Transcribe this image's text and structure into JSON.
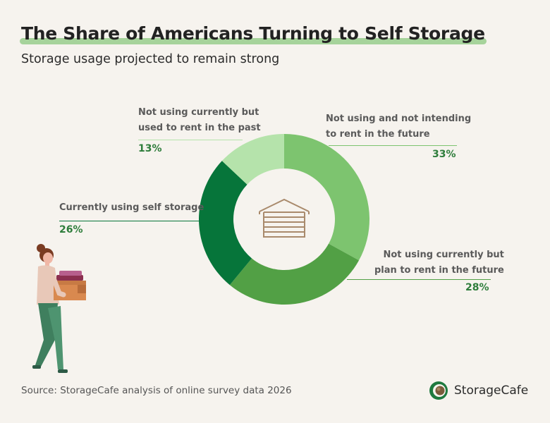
{
  "header": {
    "title": "The Share of Americans Turning to Self Storage",
    "subtitle": "Storage usage projected to remain strong"
  },
  "chart_data": {
    "type": "pie",
    "donut": true,
    "title": "The Share of Americans Turning to Self Storage",
    "subtitle": "Storage usage projected to remain strong",
    "slices": [
      {
        "label": "Not using and not intending to rent in the future",
        "line1": "Not using and not intending",
        "line2": "to rent in the future",
        "value": 33,
        "display": "33%",
        "color": "#7dc46f"
      },
      {
        "label": "Not using currently but plan to rent in the future",
        "line1": "Not using currently but",
        "line2": "plan to rent in the future",
        "value": 28,
        "display": "28%",
        "color": "#52a045"
      },
      {
        "label": "Currently using self storage",
        "line1": "Currently using self storage",
        "line2": "",
        "value": 26,
        "display": "26%",
        "color": "#06753a"
      },
      {
        "label": "Not using currently but used to rent in the past",
        "line1": "Not using currently but",
        "line2": "used to rent in the past",
        "value": 13,
        "display": "13%",
        "color": "#b5e3ab"
      }
    ],
    "center_icon": "garage-icon"
  },
  "footer": {
    "source": "Source: StorageCafe analysis of online survey data 2026",
    "logo_text": "StorageCafe",
    "logo_icon": "storagecafe-logo-icon"
  },
  "illustration": "person-carrying-boxes"
}
